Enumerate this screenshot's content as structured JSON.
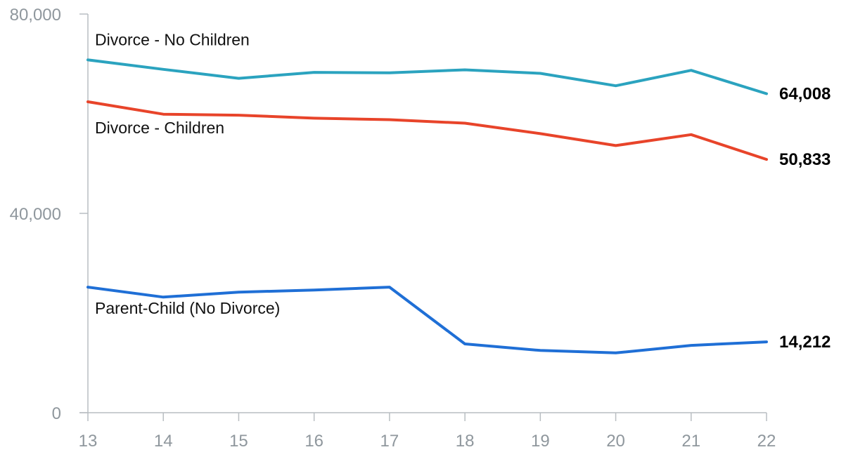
{
  "chart_data": {
    "type": "line",
    "categories": [
      "13",
      "14",
      "15",
      "16",
      "17",
      "18",
      "19",
      "20",
      "21",
      "22"
    ],
    "ylim": [
      0,
      80000
    ],
    "y_ticks": [
      {
        "value": 0,
        "label": "0"
      },
      {
        "value": 40000,
        "label": "40,000"
      },
      {
        "value": 80000,
        "label": "80,000"
      }
    ],
    "grid": false,
    "series": [
      {
        "name": "Divorce - No Children",
        "color": "#2ba3bf",
        "values": [
          70800,
          68900,
          67100,
          68300,
          68200,
          68800,
          68100,
          65600,
          68700,
          64008
        ],
        "end_label": "64,008"
      },
      {
        "name": "Divorce - Children",
        "color": "#e8442a",
        "values": [
          62400,
          59900,
          59700,
          59100,
          58800,
          58100,
          56000,
          53600,
          55800,
          50833
        ],
        "end_label": "50,833"
      },
      {
        "name": "Parent-Child (No Divorce)",
        "color": "#1f6fd6",
        "values": [
          25200,
          23200,
          24200,
          24600,
          25200,
          13800,
          12500,
          12000,
          13500,
          14212
        ],
        "end_label": "14,212"
      }
    ]
  }
}
